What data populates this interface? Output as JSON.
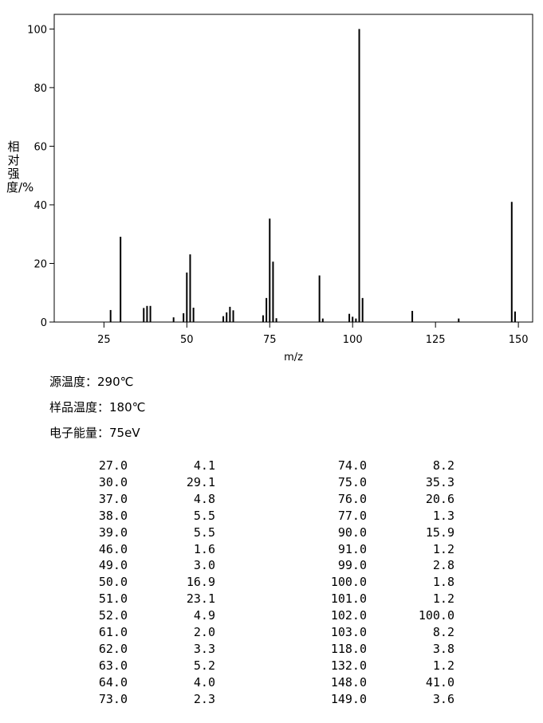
{
  "chart_data": {
    "type": "bar",
    "y_label": "相对强度/%",
    "x_label": "m/z",
    "x": [
      27,
      30,
      37,
      38,
      39,
      46,
      49,
      50,
      51,
      52,
      61,
      62,
      63,
      64,
      73,
      74,
      75,
      76,
      77,
      90,
      91,
      99,
      100,
      101,
      102,
      103,
      118,
      132,
      148,
      149
    ],
    "values": [
      4.1,
      29.1,
      4.8,
      5.5,
      5.5,
      1.6,
      3.0,
      16.9,
      23.1,
      4.9,
      2.0,
      3.3,
      5.2,
      4.0,
      2.3,
      8.2,
      35.3,
      20.6,
      1.3,
      15.9,
      1.2,
      2.8,
      1.8,
      1.2,
      100.0,
      8.2,
      3.8,
      1.2,
      41.0,
      3.6
    ],
    "color": "#000000",
    "xlim": [
      10,
      154.3
    ],
    "xticks": [
      25,
      50,
      75,
      100,
      125,
      150
    ],
    "ylim": [
      0,
      105
    ],
    "yticks": [
      0,
      20,
      40,
      60,
      80,
      100
    ]
  },
  "conditions": [
    "源温度：290℃",
    "样品温度：180℃",
    "电子能量：75eV"
  ],
  "peak_table": {
    "rows": [
      [
        "27.0",
        "4.1",
        "74.0",
        "8.2"
      ],
      [
        "30.0",
        "29.1",
        "75.0",
        "35.3"
      ],
      [
        "37.0",
        "4.8",
        "76.0",
        "20.6"
      ],
      [
        "38.0",
        "5.5",
        "77.0",
        "1.3"
      ],
      [
        "39.0",
        "5.5",
        "90.0",
        "15.9"
      ],
      [
        "46.0",
        "1.6",
        "91.0",
        "1.2"
      ],
      [
        "49.0",
        "3.0",
        "99.0",
        "2.8"
      ],
      [
        "50.0",
        "16.9",
        "100.0",
        "1.8"
      ],
      [
        "51.0",
        "23.1",
        "101.0",
        "1.2"
      ],
      [
        "52.0",
        "4.9",
        "102.0",
        "100.0"
      ],
      [
        "61.0",
        "2.0",
        "103.0",
        "8.2"
      ],
      [
        "62.0",
        "3.3",
        "118.0",
        "3.8"
      ],
      [
        "63.0",
        "5.2",
        "132.0",
        "1.2"
      ],
      [
        "64.0",
        "4.0",
        "148.0",
        "41.0"
      ],
      [
        "73.0",
        "2.3",
        "149.0",
        "3.6"
      ]
    ]
  }
}
